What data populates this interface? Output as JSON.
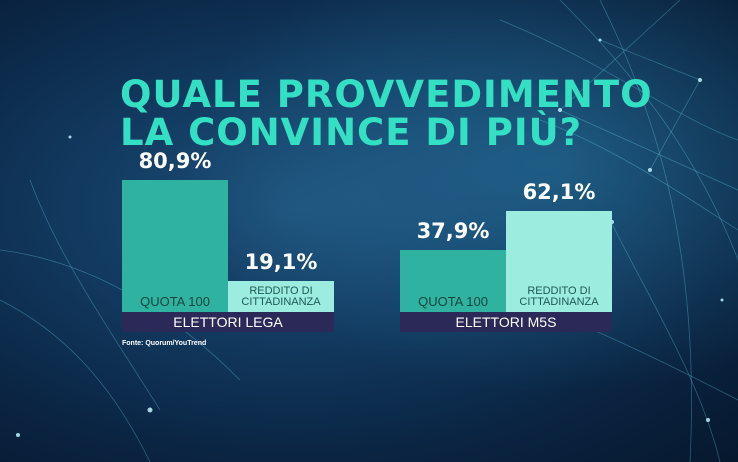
{
  "title_lines": [
    "QUALE PROVVEDIMENTO",
    "LA CONVINCE DI PIÙ?"
  ],
  "source": "Fonte: Quorum/YouTrend",
  "colors": {
    "quota": "#2fb3a0",
    "reddito": "#9cece0",
    "footer": "#2b2957",
    "title": "#34e0c4"
  },
  "chart_data": [
    {
      "type": "bar",
      "group": "ELETTORI LEGA",
      "categories": [
        "QUOTA 100",
        "REDDITO DI CITTADINANZA"
      ],
      "values": [
        80.9,
        19.1
      ],
      "value_labels": [
        "80,9%",
        "19,1%"
      ],
      "ylim": [
        0,
        100
      ]
    },
    {
      "type": "bar",
      "group": "ELETTORI M5S",
      "categories": [
        "QUOTA 100",
        "REDDITO DI CITTADINANZA"
      ],
      "values": [
        37.9,
        62.1
      ],
      "value_labels": [
        "37,9%",
        "62,1%"
      ],
      "ylim": [
        0,
        100
      ]
    }
  ]
}
